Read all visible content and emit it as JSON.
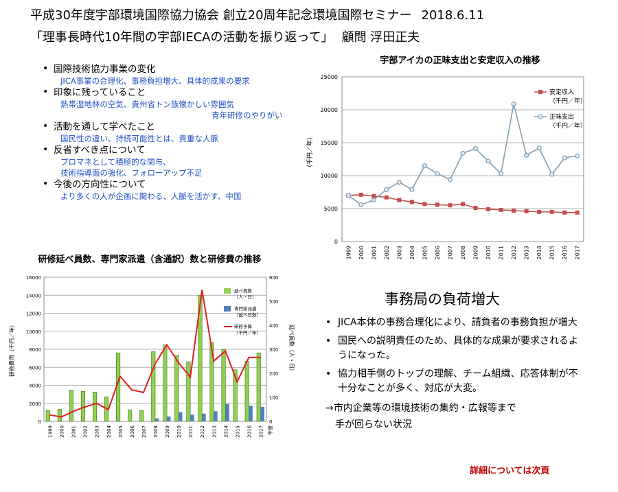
{
  "header": {
    "title": "平成30年度宇部環境国際協力協会 創立20周年記念環境国際セミナー",
    "date": "2018.6.11",
    "subtitle": "「理事長時代10年間の宇部IECAの活動を振り返って」",
    "presenter": "顧問 浮田正夫"
  },
  "bullets": [
    {
      "head": "国際技術協力事業の変化",
      "subs": [
        "JICA事業の合理化、事務負担増大、具体的成果の要求"
      ]
    },
    {
      "head": "印象に残っていること",
      "subs": [
        "熱帯湿地林の空気、貴州省トン族懐かしい雰囲気",
        "青年研修のやりがい"
      ]
    },
    {
      "head": "活動を通して学べたこと",
      "subs": [
        "国民性の違い、持続可能性とは、貴重な人脈"
      ]
    },
    {
      "head": "反省すべき点について",
      "subs": [
        "プロマネとして積極的な関与、",
        "技術指導面の強化、フォローアップ不足"
      ]
    },
    {
      "head": "今後の方向性について",
      "subs": [
        "より多くの人が企画に関わる、人脈を活かす、中国"
      ]
    }
  ],
  "secretariat": {
    "title": "事務局の負荷増大",
    "items": [
      "JICA本体の事務合理化により、請負者の事務負担が増大",
      "国民への説明責任のため、具体的な成果が要求されるようになった。",
      "協力相手側のトップの理解、チーム組織、応答体制が不十分なことが多く、対応が大変。"
    ],
    "arrow_line1": "→市内企業等の環境技術の集約・広報等まで",
    "arrow_line2": "手が回らない状況",
    "next_note": "詳細については次頁"
  },
  "chart_data": [
    {
      "type": "line",
      "title": "宇部アイカの正味支出と安定収入の推移",
      "ylabel": "（千円／年）",
      "ylim": [
        0,
        25000
      ],
      "yticks": [
        0,
        5000,
        10000,
        15000,
        20000,
        25000
      ],
      "categories": [
        "1999",
        "2000",
        "2001",
        "2002",
        "2003",
        "2004",
        "2005",
        "2006",
        "2007",
        "2008",
        "2009",
        "2010",
        "2011",
        "2012",
        "2013",
        "2014",
        "2015",
        "2016",
        "2017"
      ],
      "series": [
        {
          "name": "安定収入",
          "legend_lines": [
            "安定収入",
            "（千円／年）"
          ],
          "color": "#c0504d",
          "marker": "square",
          "values": [
            7000,
            7100,
            6900,
            6700,
            6300,
            6000,
            5700,
            5600,
            5500,
            5700,
            5100,
            4900,
            4800,
            4700,
            4600,
            4500,
            4500,
            4400,
            4400
          ]
        },
        {
          "name": "正味支出",
          "legend_lines": [
            "正味支出",
            "（千円／年）"
          ],
          "color": "#7f9fb5",
          "marker": "circle",
          "values": [
            7000,
            5600,
            6300,
            7900,
            9000,
            7900,
            11500,
            10300,
            9400,
            13400,
            14100,
            12200,
            10300,
            20900,
            13100,
            14200,
            10200,
            12700,
            13000
          ]
        }
      ],
      "grid": true,
      "legend": "right"
    },
    {
      "type": "bar",
      "title": "研修延べ員数、専門家派遣（含通訳）数と研修費の推移",
      "ylabel": "研修費用（千円／年）",
      "y2label": "延べ員数（人・日）",
      "ylim": [
        0,
        16000
      ],
      "yticks": [
        0,
        2000,
        4000,
        6000,
        8000,
        10000,
        12000,
        14000,
        16000
      ],
      "y2lim": [
        0,
        600
      ],
      "y2ticks": [
        0,
        100,
        200,
        300,
        400,
        500,
        600
      ],
      "categories": [
        "1999",
        "2000",
        "2001",
        "2002",
        "2003",
        "2004",
        "2005",
        "2006",
        "2007",
        "2008",
        "2009",
        "2010",
        "2011",
        "2012",
        "2013",
        "2014",
        "2015",
        "2016",
        "2017"
      ],
      "x_unit": "年度",
      "series": [
        {
          "name": "延べ員数",
          "legend_lines": [
            "延べ員数",
            "（人・日）"
          ],
          "color": "#92d050",
          "axis": "y2",
          "values": [
            45,
            50,
            130,
            125,
            122,
            102,
            285,
            48,
            45,
            290,
            318,
            275,
            248,
            525,
            328,
            298,
            215,
            250,
            285
          ]
        },
        {
          "name": "専門家派遣",
          "legend_lines": [
            "専門家派遣",
            "（延べ日数）"
          ],
          "color": "#4f81bd",
          "axis": "y2",
          "values": [
            0,
            0,
            0,
            0,
            0,
            0,
            0,
            0,
            0,
            12,
            20,
            38,
            28,
            32,
            42,
            72,
            0,
            65,
            60
          ]
        },
        {
          "name": "研修予算",
          "legend_lines": [
            "研修予算",
            "（千円／年）"
          ],
          "color": "#e02020",
          "type": "line",
          "axis": "y",
          "values": [
            700,
            500,
            1100,
            1600,
            2000,
            1300,
            5000,
            3500,
            3200,
            6400,
            8500,
            6500,
            4900,
            14600,
            6700,
            7800,
            4400,
            7100,
            7100
          ]
        }
      ],
      "grid": true,
      "legend": "right"
    }
  ]
}
